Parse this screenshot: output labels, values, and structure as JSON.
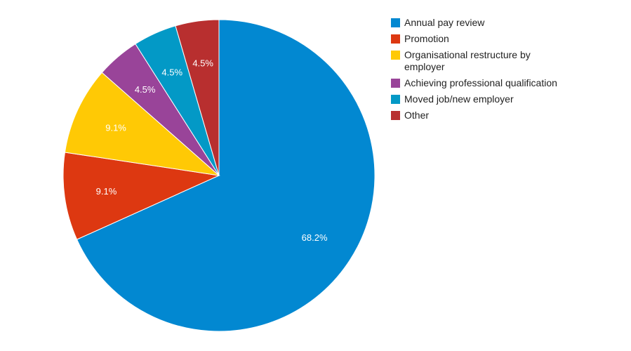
{
  "chart_data": {
    "type": "pie",
    "legend_position": "right",
    "categories": [
      "Annual pay review",
      "Promotion",
      "Organisational restructure by employer",
      "Achieving professional qualification",
      "Moved job/new employer",
      "Other"
    ],
    "values": [
      68.2,
      9.1,
      9.1,
      4.5,
      4.5,
      4.5
    ],
    "data_labels": [
      "68.2%",
      "9.1%",
      "9.1%",
      "4.5%",
      "4.5%",
      "4.5%"
    ],
    "colors": [
      "#0288d1",
      "#dd3811",
      "#ffc905",
      "#994499",
      "#0399c6",
      "#b82f2f"
    ]
  }
}
